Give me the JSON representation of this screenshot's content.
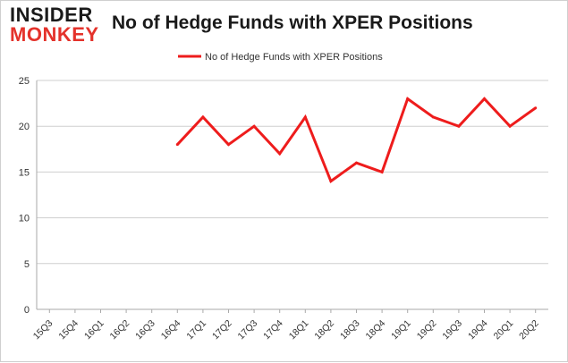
{
  "header": {
    "logo_top": "INSIDER",
    "logo_bottom": "MONKEY",
    "title": "No of Hedge Funds with XPER Positions"
  },
  "colors": {
    "series": "#ee1c1c",
    "grid": "#cfcfcf",
    "text": "#333333",
    "logo_red": "#e4322b"
  },
  "chart_data": {
    "type": "line",
    "title": "No of Hedge Funds with XPER Positions",
    "xlabel": "",
    "ylabel": "",
    "categories": [
      "15Q3",
      "15Q4",
      "16Q1",
      "16Q2",
      "16Q3",
      "16Q4",
      "17Q1",
      "17Q2",
      "17Q3",
      "17Q4",
      "18Q1",
      "18Q2",
      "18Q3",
      "18Q4",
      "19Q1",
      "19Q2",
      "19Q3",
      "19Q4",
      "20Q1",
      "20Q2"
    ],
    "series": [
      {
        "name": "No of Hedge Funds with XPER Positions",
        "values": [
          null,
          null,
          null,
          null,
          null,
          18,
          21,
          18,
          20,
          17,
          21,
          14,
          16,
          15,
          23,
          21,
          20,
          23,
          20,
          22
        ]
      }
    ],
    "ylim": [
      0,
      25
    ],
    "yticks": [
      0,
      5,
      10,
      15,
      20,
      25
    ],
    "grid": true,
    "legend": "top-center"
  }
}
